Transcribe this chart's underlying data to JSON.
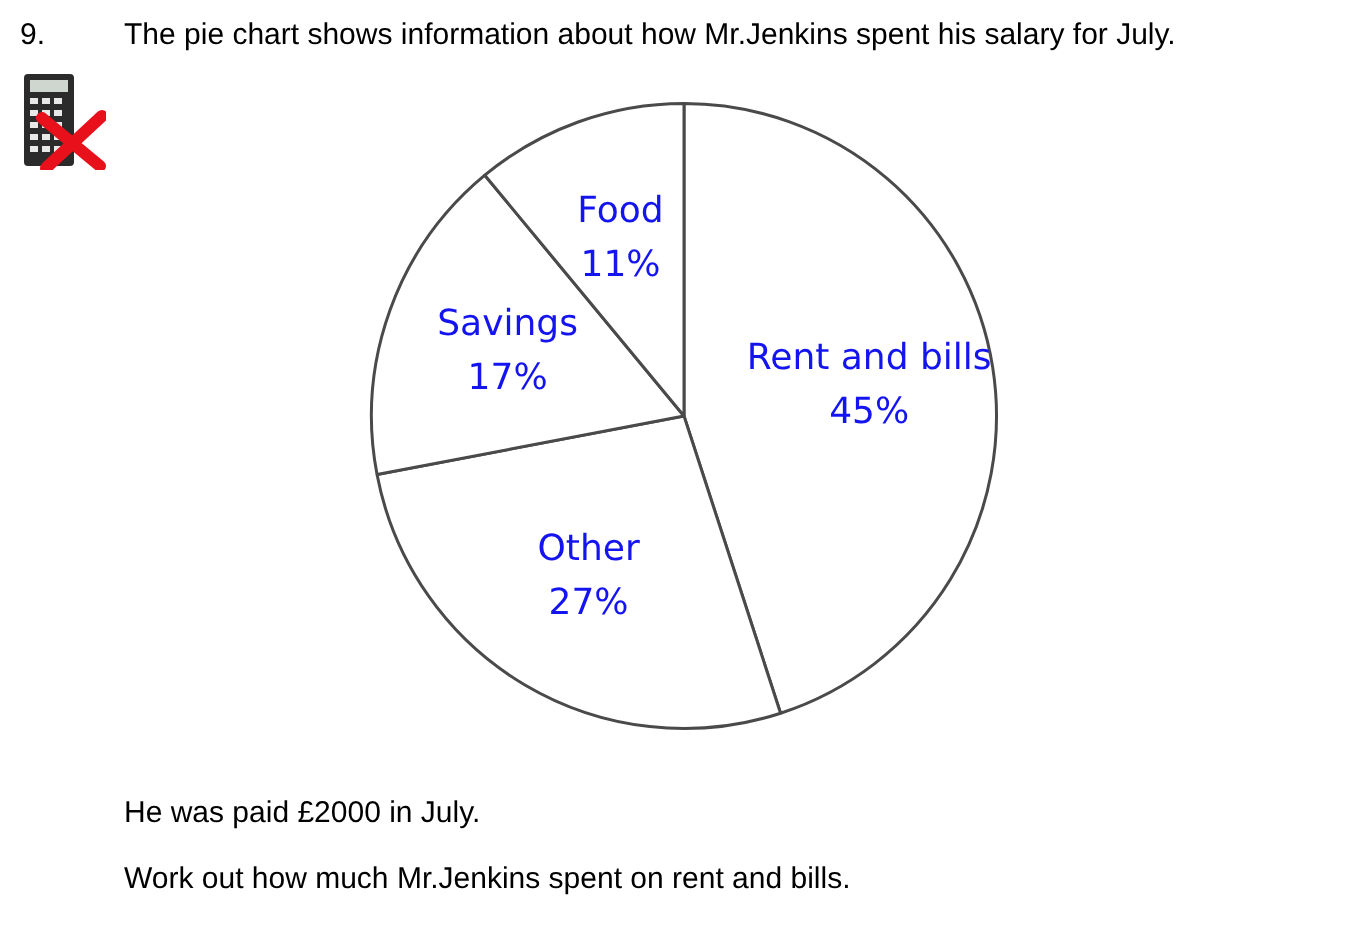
{
  "chart_data": {
    "type": "pie",
    "title": "The pie chart shows information about how Mr.Jenkins spent his salary for July.",
    "categories": [
      "Rent and bills",
      "Other",
      "Savings",
      "Food"
    ],
    "values": [
      45,
      27,
      17,
      11
    ],
    "value_labels": [
      "45%",
      "27%",
      "17%",
      "11%"
    ],
    "colors": [
      "#ffffff",
      "#ffffff",
      "#ffffff",
      "#ffffff"
    ],
    "legend": false,
    "annotations": [
      "9.",
      "He was paid £2000 in July.",
      "Work out how much Mr.Jenkins spent on rent and bills."
    ]
  }
}
